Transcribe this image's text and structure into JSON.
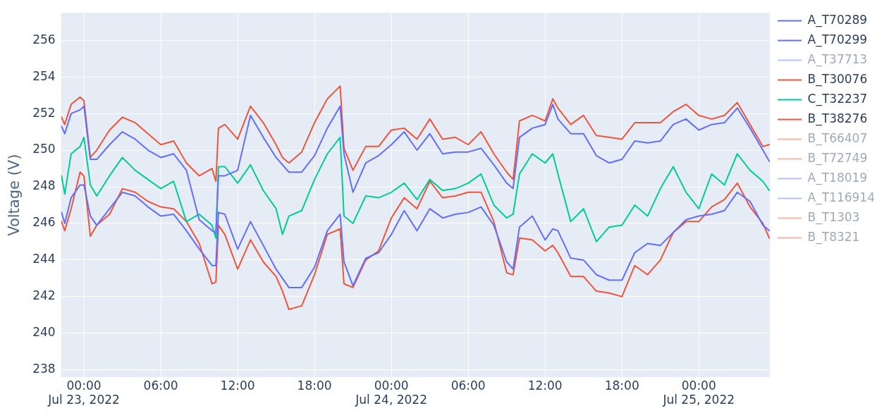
{
  "chart_data": {
    "type": "line",
    "ylabel": "Voltage (V)",
    "legend": "top right",
    "grid": true,
    "marker": "none",
    "line_style": "solid",
    "xlim": [
      "2022-07-22T22:13",
      "2022-07-25T05:33"
    ],
    "xticks": [
      {
        "value": "2022-07-23T00:00",
        "label": "00:00\nJul 23, 2022"
      },
      {
        "value": "2022-07-23T06:00",
        "label": "06:00"
      },
      {
        "value": "2022-07-23T12:00",
        "label": "12:00"
      },
      {
        "value": "2022-07-23T18:00",
        "label": "18:00"
      },
      {
        "value": "2022-07-24T00:00",
        "label": "00:00\nJul 24, 2022"
      },
      {
        "value": "2022-07-24T06:00",
        "label": "06:00"
      },
      {
        "value": "2022-07-24T12:00",
        "label": "12:00"
      },
      {
        "value": "2022-07-24T18:00",
        "label": "18:00"
      },
      {
        "value": "2022-07-25T00:00",
        "label": "00:00\nJul 25, 2022"
      }
    ],
    "ylim": [
      237.6,
      257.5
    ],
    "yticks": [
      238,
      240,
      242,
      244,
      246,
      248,
      250,
      252,
      254,
      256
    ],
    "x": [
      "2022-07-22T22:15",
      "2022-07-22T22:30",
      "2022-07-22T23:00",
      "2022-07-22T23:42",
      "2022-07-23T00:00",
      "2022-07-23T00:30",
      "2022-07-23T01:00",
      "2022-07-23T02:00",
      "2022-07-23T03:00",
      "2022-07-23T04:00",
      "2022-07-23T05:00",
      "2022-07-23T06:00",
      "2022-07-23T07:00",
      "2022-07-23T08:00",
      "2022-07-23T09:00",
      "2022-07-23T10:00",
      "2022-07-23T10:18",
      "2022-07-23T10:30",
      "2022-07-23T11:00",
      "2022-07-23T12:00",
      "2022-07-23T13:00",
      "2022-07-23T14:00",
      "2022-07-23T15:00",
      "2022-07-23T15:30",
      "2022-07-23T16:00",
      "2022-07-23T17:00",
      "2022-07-23T18:00",
      "2022-07-23T19:00",
      "2022-07-23T20:00",
      "2022-07-23T20:18",
      "2022-07-23T21:00",
      "2022-07-23T22:00",
      "2022-07-23T23:00",
      "2022-07-24T00:00",
      "2022-07-24T01:00",
      "2022-07-24T02:00",
      "2022-07-24T03:00",
      "2022-07-24T04:00",
      "2022-07-24T05:00",
      "2022-07-24T06:00",
      "2022-07-24T07:00",
      "2022-07-24T08:00",
      "2022-07-24T09:00",
      "2022-07-24T09:30",
      "2022-07-24T10:00",
      "2022-07-24T11:00",
      "2022-07-24T12:00",
      "2022-07-24T12:36",
      "2022-07-24T13:00",
      "2022-07-24T14:00",
      "2022-07-24T15:00",
      "2022-07-24T16:00",
      "2022-07-24T17:00",
      "2022-07-24T18:00",
      "2022-07-24T19:00",
      "2022-07-24T20:00",
      "2022-07-24T21:00",
      "2022-07-24T22:00",
      "2022-07-24T23:00",
      "2022-07-25T00:00",
      "2022-07-25T01:00",
      "2022-07-25T02:00",
      "2022-07-25T03:00",
      "2022-07-25T04:00",
      "2022-07-25T05:00",
      "2022-07-25T05:30"
    ],
    "series": [
      {
        "name": "A_T70289",
        "color": "#636efa",
        "values": [
          251.3,
          250.9,
          252.0,
          252.2,
          252.4,
          249.5,
          249.5,
          250.3,
          251.0,
          250.6,
          250.0,
          249.6,
          249.8,
          248.9,
          246.2,
          245.6,
          245.5,
          248.6,
          248.6,
          248.9,
          251.9,
          250.7,
          249.6,
          249.2,
          248.8,
          248.8,
          249.7,
          251.2,
          252.4,
          249.8,
          247.7,
          249.3,
          249.7,
          250.3,
          251.0,
          250.0,
          250.9,
          249.8,
          249.9,
          249.9,
          250.1,
          249.2,
          248.2,
          247.9,
          250.7,
          251.2,
          251.4,
          252.5,
          251.7,
          250.9,
          250.9,
          249.7,
          249.3,
          249.5,
          250.5,
          250.4,
          250.5,
          251.4,
          251.7,
          251.1,
          251.4,
          251.5,
          252.3,
          251.2,
          250.0,
          249.4
        ]
      },
      {
        "name": "A_T70299",
        "color": "#636efa",
        "values": [
          246.6,
          246.0,
          247.4,
          248.1,
          248.1,
          246.4,
          245.9,
          246.8,
          247.7,
          247.5,
          246.9,
          246.4,
          246.5,
          245.6,
          244.6,
          243.7,
          243.7,
          246.6,
          246.5,
          244.6,
          246.1,
          244.8,
          243.5,
          243.0,
          242.5,
          242.5,
          243.6,
          245.6,
          246.5,
          243.9,
          242.6,
          244.1,
          244.4,
          245.4,
          246.7,
          245.6,
          246.8,
          246.3,
          246.5,
          246.6,
          246.9,
          245.9,
          243.9,
          243.5,
          245.8,
          246.4,
          245.1,
          245.7,
          245.6,
          244.1,
          244.0,
          243.2,
          242.9,
          242.9,
          244.4,
          244.9,
          244.8,
          245.5,
          246.2,
          246.4,
          246.5,
          246.7,
          247.7,
          247.2,
          245.9,
          245.6
        ]
      },
      {
        "name": "A_T37713",
        "color": "#636efa",
        "values": [
          null,
          null,
          null,
          null,
          null,
          null,
          null,
          null,
          null,
          null,
          null,
          null,
          null,
          null,
          null,
          null,
          null,
          null,
          null,
          null,
          null,
          null,
          null,
          null,
          null,
          null,
          null,
          null,
          null,
          null,
          null,
          null,
          null,
          null,
          null,
          null,
          null,
          null,
          null,
          null,
          null,
          null,
          null,
          null,
          null,
          null,
          null,
          null,
          null,
          null,
          null,
          null,
          null,
          null,
          null,
          null,
          null,
          null,
          null,
          null,
          null,
          null,
          null,
          null,
          null,
          null
        ]
      },
      {
        "name": "B_T30076",
        "color": "#ef553b",
        "values": [
          251.8,
          251.4,
          252.5,
          252.9,
          252.7,
          249.6,
          250.0,
          251.1,
          251.8,
          251.5,
          250.9,
          250.3,
          250.5,
          249.3,
          248.6,
          249.0,
          248.3,
          251.2,
          251.4,
          250.6,
          252.4,
          251.5,
          250.3,
          249.6,
          249.3,
          249.9,
          251.5,
          252.8,
          253.5,
          250.1,
          248.9,
          250.2,
          250.2,
          251.1,
          251.2,
          250.6,
          251.7,
          250.6,
          250.7,
          250.3,
          251.0,
          249.8,
          248.8,
          248.4,
          251.6,
          251.9,
          251.6,
          252.8,
          252.3,
          251.4,
          251.9,
          250.8,
          250.7,
          250.6,
          251.5,
          251.5,
          251.5,
          252.1,
          252.5,
          251.9,
          251.7,
          251.9,
          252.6,
          251.4,
          250.2,
          250.3
        ]
      },
      {
        "name": "C_T32237",
        "color": "#00cc96",
        "values": [
          248.6,
          247.6,
          249.8,
          250.2,
          250.7,
          248.1,
          247.5,
          248.6,
          249.6,
          248.9,
          248.4,
          247.9,
          248.3,
          246.1,
          246.5,
          245.9,
          245.2,
          249.1,
          249.1,
          248.2,
          249.2,
          247.8,
          246.8,
          245.4,
          246.4,
          246.7,
          248.4,
          249.8,
          250.7,
          246.4,
          246.0,
          247.5,
          247.4,
          247.7,
          248.2,
          247.3,
          248.4,
          247.8,
          247.9,
          248.2,
          248.7,
          247.0,
          246.3,
          246.5,
          248.7,
          249.8,
          249.3,
          249.8,
          248.7,
          246.1,
          246.8,
          245.0,
          245.8,
          245.9,
          247.0,
          246.4,
          247.9,
          249.1,
          247.7,
          246.8,
          248.7,
          248.1,
          249.8,
          248.9,
          248.3,
          247.8
        ]
      },
      {
        "name": "B_T38276",
        "color": "#ef553b",
        "values": [
          246.1,
          245.6,
          246.8,
          248.8,
          248.6,
          245.3,
          245.9,
          246.5,
          247.9,
          247.7,
          247.2,
          246.9,
          246.8,
          246.1,
          244.9,
          242.7,
          242.8,
          245.9,
          245.4,
          243.5,
          245.1,
          243.9,
          243.1,
          242.3,
          241.3,
          241.5,
          243.2,
          245.4,
          245.7,
          242.7,
          242.5,
          244.0,
          244.5,
          246.3,
          247.4,
          246.8,
          248.3,
          247.4,
          247.5,
          247.7,
          247.7,
          246.1,
          243.3,
          243.2,
          245.2,
          245.1,
          244.5,
          244.8,
          244.4,
          243.1,
          243.1,
          242.3,
          242.2,
          242.0,
          243.7,
          243.2,
          244.0,
          245.5,
          246.1,
          246.1,
          246.9,
          247.3,
          248.2,
          246.9,
          246.0,
          245.2
        ]
      },
      {
        "name": "B_T66407",
        "color": "#ef553b",
        "values": [
          null,
          null,
          null,
          null,
          null,
          null,
          null,
          null,
          null,
          null,
          null,
          null,
          null,
          null,
          null,
          null,
          null,
          null,
          null,
          null,
          null,
          null,
          null,
          null,
          null,
          null,
          null,
          null,
          null,
          null,
          null,
          null,
          null,
          null,
          null,
          null,
          null,
          null,
          null,
          null,
          null,
          null,
          null,
          null,
          null,
          null,
          null,
          null,
          null,
          null,
          null,
          null,
          null,
          null,
          null,
          null,
          null,
          null,
          null,
          null,
          null,
          null,
          null,
          null,
          null,
          null
        ]
      },
      {
        "name": "B_T72749",
        "color": "#ef553b",
        "values": [
          null,
          null,
          null,
          null,
          null,
          null,
          null,
          null,
          null,
          null,
          null,
          null,
          null,
          null,
          null,
          null,
          null,
          null,
          null,
          null,
          null,
          null,
          null,
          null,
          null,
          null,
          null,
          null,
          null,
          null,
          null,
          null,
          null,
          null,
          null,
          null,
          null,
          null,
          null,
          null,
          null,
          null,
          null,
          null,
          null,
          null,
          null,
          null,
          null,
          null,
          null,
          null,
          null,
          null,
          null,
          null,
          null,
          null,
          null,
          null,
          null,
          null,
          null,
          null,
          null,
          null
        ]
      },
      {
        "name": "A_T18019",
        "color": "#636efa",
        "values": [
          null,
          null,
          null,
          null,
          null,
          null,
          null,
          null,
          null,
          null,
          null,
          null,
          null,
          null,
          null,
          null,
          null,
          null,
          null,
          null,
          null,
          null,
          null,
          null,
          null,
          null,
          null,
          null,
          null,
          null,
          null,
          null,
          null,
          null,
          null,
          null,
          null,
          null,
          null,
          null,
          null,
          null,
          null,
          null,
          null,
          null,
          null,
          null,
          null,
          null,
          null,
          null,
          null,
          null,
          null,
          null,
          null,
          null,
          null,
          null,
          null,
          null,
          null,
          null,
          null,
          null
        ]
      },
      {
        "name": "A_T116914",
        "color": "#636efa",
        "values": [
          null,
          null,
          null,
          null,
          null,
          null,
          null,
          null,
          null,
          null,
          null,
          null,
          null,
          null,
          null,
          null,
          null,
          null,
          null,
          null,
          null,
          null,
          null,
          null,
          null,
          null,
          null,
          null,
          null,
          null,
          null,
          null,
          null,
          null,
          null,
          null,
          null,
          null,
          null,
          null,
          null,
          null,
          null,
          null,
          null,
          null,
          null,
          null,
          null,
          null,
          null,
          null,
          null,
          null,
          null,
          null,
          null,
          null,
          null,
          null,
          null,
          null,
          null,
          null,
          null,
          null
        ]
      },
      {
        "name": "B_T1303",
        "color": "#ef553b",
        "values": [
          null,
          null,
          null,
          null,
          null,
          null,
          null,
          null,
          null,
          null,
          null,
          null,
          null,
          null,
          null,
          null,
          null,
          null,
          null,
          null,
          null,
          null,
          null,
          null,
          null,
          null,
          null,
          null,
          null,
          null,
          null,
          null,
          null,
          null,
          null,
          null,
          null,
          null,
          null,
          null,
          null,
          null,
          null,
          null,
          null,
          null,
          null,
          null,
          null,
          null,
          null,
          null,
          null,
          null,
          null,
          null,
          null,
          null,
          null,
          null,
          null,
          null,
          null,
          null,
          null,
          null
        ]
      },
      {
        "name": "B_T8321",
        "color": "#ef553b",
        "values": [
          null,
          null,
          null,
          null,
          null,
          null,
          null,
          null,
          null,
          null,
          null,
          null,
          null,
          null,
          null,
          null,
          null,
          null,
          null,
          null,
          null,
          null,
          null,
          null,
          null,
          null,
          null,
          null,
          null,
          null,
          null,
          null,
          null,
          null,
          null,
          null,
          null,
          null,
          null,
          null,
          null,
          null,
          null,
          null,
          null,
          null,
          null,
          null,
          null,
          null,
          null,
          null,
          null,
          null,
          null,
          null,
          null,
          null,
          null,
          null,
          null,
          null,
          null,
          null,
          null,
          null
        ]
      }
    ]
  }
}
